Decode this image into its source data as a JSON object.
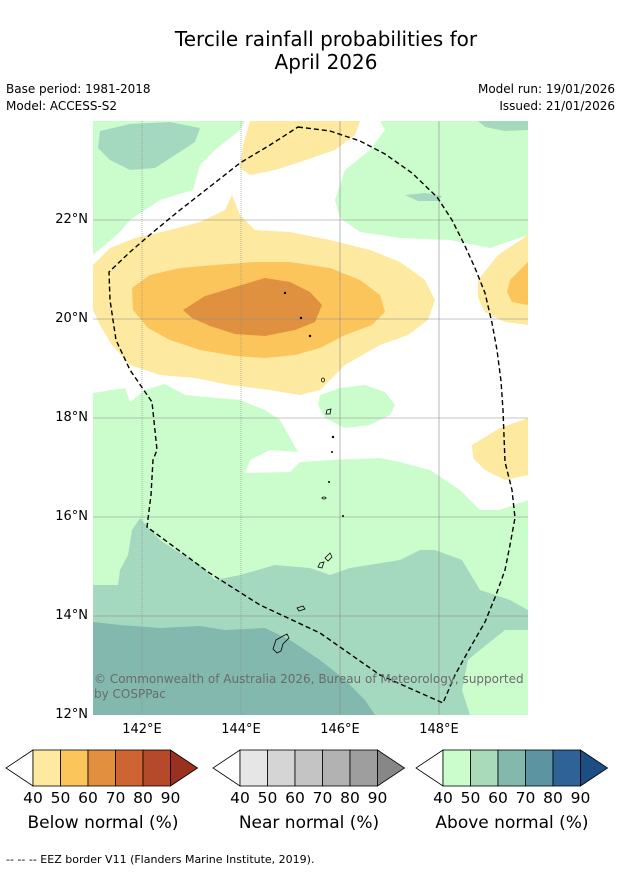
{
  "title_line1": "Tercile rainfall probabilities for",
  "title_line2": "April 2026",
  "base_period": "Base period: 1981-2018",
  "model": "Model: ACCESS-S2",
  "model_run": "Model run: 19/01/2026",
  "issued": "Issued: 21/01/2026",
  "lat_labels": [
    "22°N",
    "20°N",
    "18°N",
    "16°N",
    "14°N",
    "12°N"
  ],
  "lon_labels": [
    "142°E",
    "144°E",
    "146°E",
    "148°E"
  ],
  "copyright": "© Commonwealth of Australia 2026, Bureau of Meteorology, supported by COSPPac",
  "legend": {
    "ticks": [
      "40",
      "50",
      "60",
      "70",
      "80",
      "90"
    ],
    "below": {
      "title": "Below normal (%)",
      "colors": [
        "#fde9a0",
        "#fcc55c",
        "#e38f40",
        "#cf6433",
        "#b44a2a",
        "#9a3020"
      ]
    },
    "near": {
      "title": "Near normal (%)",
      "colors": [
        "#e6e6e6",
        "#d5d5d5",
        "#c4c4c4",
        "#b2b2b2",
        "#9e9e9e",
        "#878787"
      ]
    },
    "above": {
      "title": "Above normal (%)",
      "colors": [
        "#cbfdcc",
        "#a9dab9",
        "#83b9ad",
        "#5c95a1",
        "#2f6296",
        "#1c4e83"
      ]
    }
  },
  "footnote": "--  --  -- EEZ border V11 (Flanders Marine Institute, 2019)."
}
